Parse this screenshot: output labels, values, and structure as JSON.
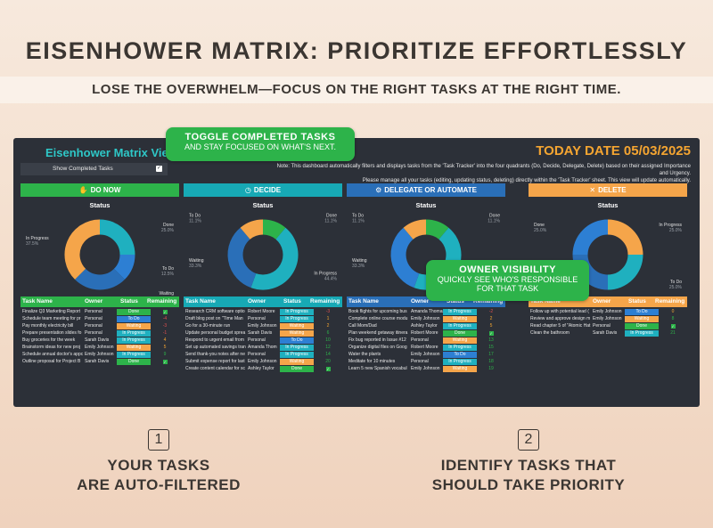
{
  "promo": {
    "title": "EISENHOWER MATRIX: PRIORITIZE EFFORTLESSLY",
    "subtitle": "LOSE THE OVERWHELM—FOCUS ON THE RIGHT TASKS AT THE RIGHT TIME."
  },
  "dashboard": {
    "title": "Eisenhower Matrix View",
    "today_label": "TODAY DATE 05/03/2025",
    "note_line1": "Note: This dashboard automatically filters and displays tasks from the 'Task Tracker' into the four quadrants (Do, Decide, Delegate, Delete) based on their assigned Importance and Urgency.",
    "note_line2": "Please manage all your tasks (editing, updating status, deleting) directly within the 'Task Tracker' sheet. This view will update automatically.",
    "toggle_label": "Show Completed Tasks",
    "toggle_checked": "✓"
  },
  "callouts": {
    "toggle_title": "TOGGLE COMPLETED TASKS",
    "toggle_sub": "AND STAY FOCUSED ON WHAT'S NEXT.",
    "owner_title": "OWNER VISIBILITY",
    "owner_sub1": "QUICKLY SEE WHO'S RESPONSIBLE",
    "owner_sub2": "FOR THAT TASK"
  },
  "steps": [
    {
      "num": "1",
      "line1": "YOUR TASKS",
      "line2": "ARE AUTO-FILTERED"
    },
    {
      "num": "2",
      "line1": "IDENTIFY TASKS THAT",
      "line2": "SHOULD TAKE PRIORITY"
    }
  ],
  "columns": {
    "task": "Task Name",
    "owner": "Owner",
    "status": "Status",
    "remaining": "Remaining"
  },
  "status_title": "Status",
  "status_colors": {
    "Done": "#2db34a",
    "To Do": "#2d7fd3",
    "Waiting": "#f5a54a",
    "In Progress": "#1fb0bf"
  },
  "quadrants": [
    {
      "key": "do",
      "label": "DO NOW",
      "glyph": "✋",
      "icon": "hand-icon",
      "color": "#2db34a",
      "slices": [
        {
          "name": "Done",
          "pct": "25.0%",
          "value": 25.0,
          "color": "#1fb0bf"
        },
        {
          "name": "To Do",
          "pct": "12.5%",
          "value": 12.5,
          "color": "#2d7fd3"
        },
        {
          "name": "Waiting",
          "pct": "25.0%",
          "value": 25.0,
          "color": "#2a6fb8"
        },
        {
          "name": "In Progress",
          "pct": "37.5%",
          "value": 37.5,
          "color": "#f5a54a"
        }
      ],
      "rows": [
        {
          "task": "Finalize Q3 Marketing Report",
          "owner": "Personal",
          "status": "Done",
          "remaining": "✓"
        },
        {
          "task": "Schedule team meeting for pr",
          "owner": "Personal",
          "status": "To Do",
          "remaining": "-4"
        },
        {
          "task": "Pay monthly electricity bill",
          "owner": "Personal",
          "status": "Waiting",
          "remaining": "-3"
        },
        {
          "task": "Prepare presentation slides fo",
          "owner": "Personal",
          "status": "In Progress",
          "remaining": "-1"
        },
        {
          "task": "Buy groceries for the week",
          "owner": "Sarah Davis",
          "status": "In Progress",
          "remaining": "4"
        },
        {
          "task": "Brainstorm ideas for new proj",
          "owner": "Emily Johnson",
          "status": "Waiting",
          "remaining": "5"
        },
        {
          "task": "Schedule annual doctor's appc",
          "owner": "Emily Johnson",
          "status": "In Progress",
          "remaining": "9"
        },
        {
          "task": "Outline proposal for Project B",
          "owner": "Sarah Davis",
          "status": "Done",
          "remaining": "✓"
        }
      ]
    },
    {
      "key": "decide",
      "label": "DECIDE",
      "glyph": "◷",
      "icon": "clock-icon",
      "color": "#17a9b5",
      "slices": [
        {
          "name": "Done",
          "pct": "11.1%",
          "value": 11.1,
          "color": "#2db34a"
        },
        {
          "name": "In Progress",
          "pct": "44.4%",
          "value": 44.4,
          "color": "#1fb0bf"
        },
        {
          "name": "Waiting",
          "pct": "33.3%",
          "value": 33.3,
          "color": "#2a6fb8"
        },
        {
          "name": "To Do",
          "pct": "11.1%",
          "value": 11.1,
          "color": "#f5a54a"
        }
      ],
      "rows": [
        {
          "task": "Research CRM software optio",
          "owner": "Robert Moore",
          "status": "In Progress",
          "remaining": "-3"
        },
        {
          "task": "Draft blog post on \"Time Man",
          "owner": "Personal",
          "status": "In Progress",
          "remaining": "1"
        },
        {
          "task": "Go for a 30-minute run",
          "owner": "Emily Johnson",
          "status": "Waiting",
          "remaining": "2"
        },
        {
          "task": "Update personal budget sprea",
          "owner": "Sarah Davis",
          "status": "Waiting",
          "remaining": "6"
        },
        {
          "task": "Respond to urgent email from",
          "owner": "Personal",
          "status": "To Do",
          "remaining": "10"
        },
        {
          "task": "Set up automated savings tran",
          "owner": "Amanda Thom",
          "status": "In Progress",
          "remaining": "12"
        },
        {
          "task": "Send thank-you notes after ne",
          "owner": "Personal",
          "status": "In Progress",
          "remaining": "14"
        },
        {
          "task": "Submit expense report for last",
          "owner": "Emily Johnson",
          "status": "Waiting",
          "remaining": "20"
        },
        {
          "task": "Create content calendar for sc",
          "owner": "Ashley Taylor",
          "status": "Done",
          "remaining": "✓"
        }
      ]
    },
    {
      "key": "delegate",
      "label": "DELEGATE OR AUTOMATE",
      "glyph": "⚙",
      "icon": "robot-icon",
      "color": "#2a6fb8",
      "slices": [
        {
          "name": "Done",
          "pct": "11.1%",
          "value": 11.1,
          "color": "#2db34a"
        },
        {
          "name": "In Progress",
          "pct": "44.4%",
          "value": 44.4,
          "color": "#1fb0bf"
        },
        {
          "name": "Waiting",
          "pct": "33.3%",
          "value": 33.3,
          "color": "#2d7fd3"
        },
        {
          "name": "To Do",
          "pct": "11.1%",
          "value": 11.1,
          "color": "#f5a54a"
        }
      ],
      "rows": [
        {
          "task": "Book flights for upcoming bus",
          "owner": "Amanda Thomas",
          "status": "In Progress",
          "remaining": "-2"
        },
        {
          "task": "Complete online course modu",
          "owner": "Emily Johnson",
          "status": "Waiting",
          "remaining": "2"
        },
        {
          "task": "Call Mom/Dad",
          "owner": "Ashley Taylor",
          "status": "In Progress",
          "remaining": "5"
        },
        {
          "task": "Plan weekend getaway itinera",
          "owner": "Robert Moore",
          "status": "Done",
          "remaining": "✓"
        },
        {
          "task": "Fix bug reported in Issue #12",
          "owner": "Personal",
          "status": "Waiting",
          "remaining": "13"
        },
        {
          "task": "Organize digital files on Goog",
          "owner": "Robert Moore",
          "status": "In Progress",
          "remaining": "15"
        },
        {
          "task": "Water the plants",
          "owner": "Emily Johnson",
          "status": "To Do",
          "remaining": "17"
        },
        {
          "task": "Meditate for 10 minutes",
          "owner": "Personal",
          "status": "In Progress",
          "remaining": "18"
        },
        {
          "task": "Learn 5 new Spanish vocabul",
          "owner": "Emily Johnson",
          "status": "Waiting",
          "remaining": "19"
        }
      ]
    },
    {
      "key": "delete",
      "label": "DELETE",
      "glyph": "✕",
      "icon": "cross-icon",
      "color": "#f5a54a",
      "slices": [
        {
          "name": "In Progress",
          "pct": "25.0%",
          "value": 25.0,
          "color": "#f5a54a"
        },
        {
          "name": "To Do",
          "pct": "25.0%",
          "value": 25.0,
          "color": "#1fb0bf"
        },
        {
          "name": "Waiting",
          "pct": "25.0%",
          "value": 25.0,
          "color": "#2a6fb8"
        },
        {
          "name": "Done",
          "pct": "25.0%",
          "value": 25.0,
          "color": "#2d7fd3"
        }
      ],
      "rows": [
        {
          "task": "Follow up with potential lead (",
          "owner": "Emily Johnson",
          "status": "To Do",
          "remaining": "0"
        },
        {
          "task": "Review and approve design m",
          "owner": "Emily Johnson",
          "status": "Waiting",
          "remaining": "8"
        },
        {
          "task": "Read chapter 5 of \"Atomic Hat",
          "owner": "Personal",
          "status": "Done",
          "remaining": "✓"
        },
        {
          "task": "Clean the bathroom",
          "owner": "Sarah Davis",
          "status": "In Progress",
          "remaining": "21"
        }
      ]
    }
  ]
}
